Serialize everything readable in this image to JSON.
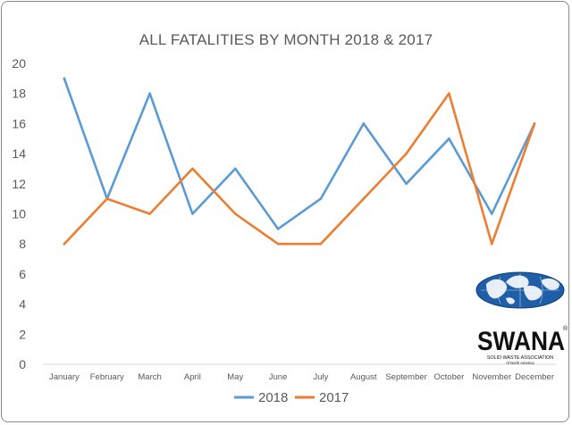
{
  "chart_data": {
    "type": "line",
    "title": "ALL FATALITIES BY MONTH 2018 & 2017",
    "categories": [
      "January",
      "February",
      "March",
      "April",
      "May",
      "June",
      "July",
      "August",
      "September",
      "October",
      "November",
      "December"
    ],
    "series": [
      {
        "name": "2018",
        "color": "#5b9bd5",
        "values": [
          19,
          11,
          18,
          10,
          13,
          9,
          11,
          16,
          12,
          15,
          10,
          16
        ]
      },
      {
        "name": "2017",
        "color": "#ed7d31",
        "values": [
          8,
          11,
          10,
          13,
          10,
          8,
          8,
          11,
          14,
          18,
          8,
          16
        ]
      }
    ],
    "ylim": [
      0,
      20
    ],
    "yticks": [
      0,
      2,
      4,
      6,
      8,
      10,
      12,
      14,
      16,
      18,
      20
    ],
    "grid": false,
    "legend_position": "bottom"
  },
  "logo": {
    "name": "SWANA",
    "registered_mark": "®",
    "line1": "SOLID WASTE ASSOCIATION",
    "line2": "of North America",
    "icon": "globe-icon",
    "globe_color": "#1f5fa8"
  }
}
